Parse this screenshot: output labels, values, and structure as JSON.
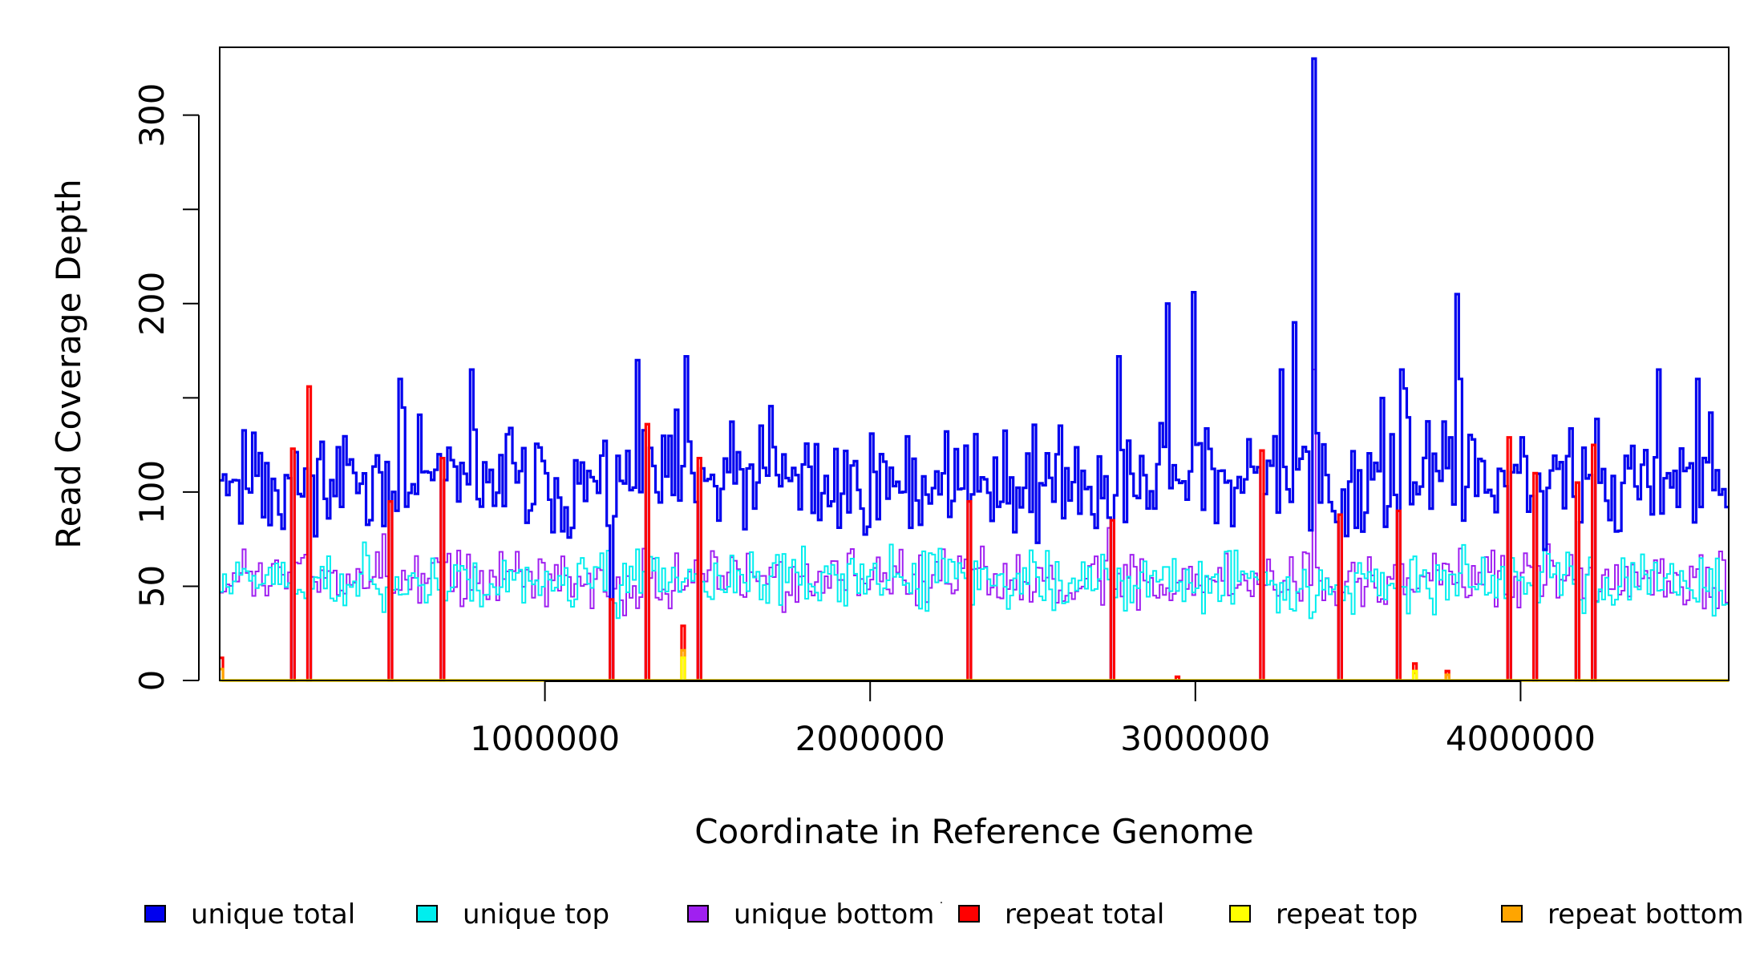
{
  "chart_data": {
    "type": "line",
    "title": "",
    "xlabel": "Coordinate in Reference Genome",
    "ylabel": "Read Coverage Depth",
    "xlim": [
      0,
      4640000
    ],
    "ylim": [
      0,
      336
    ],
    "x_ticks": [
      1000000,
      2000000,
      3000000,
      4000000
    ],
    "x_tick_labels": [
      "1000000",
      "2000000",
      "3000000",
      "4000000"
    ],
    "y_ticks": [
      0,
      50,
      100,
      150,
      200,
      250,
      300
    ],
    "y_tick_labels": [
      "0",
      "50",
      "100",
      "",
      "200",
      "",
      "300"
    ],
    "grid": false,
    "legend_position": "bottom",
    "bin_size": 10000,
    "series": [
      {
        "name": "unique total",
        "color": "#0000ee",
        "baseline": 105,
        "noise": 17,
        "min": 60,
        "max": 165,
        "seed": 11,
        "spikes": [
          [
            3360000,
            330
          ],
          [
            2990000,
            206
          ],
          [
            2910000,
            200
          ],
          [
            3800000,
            205
          ],
          [
            3300000,
            190
          ],
          [
            1280000,
            170
          ],
          [
            1430000,
            172
          ],
          [
            3630000,
            165
          ],
          [
            3260000,
            165
          ],
          [
            3810000,
            160
          ],
          [
            4420000,
            165
          ],
          [
            2760000,
            172
          ],
          [
            4540000,
            160
          ],
          [
            550000,
            160
          ],
          [
            770000,
            165
          ]
        ],
        "drops": [
          220000,
          270000,
          520000,
          680000,
          1200000,
          1310000,
          1470000,
          2300000,
          2740000,
          3200000,
          3440000,
          3620000,
          3960000,
          4040000,
          4170000,
          4220000
        ]
      },
      {
        "name": "unique top",
        "color": "#00eeee",
        "baseline": 52,
        "noise": 9,
        "min": 22,
        "max": 95,
        "seed": 23,
        "spikes": [],
        "drops": [
          220000,
          270000,
          520000,
          680000,
          1200000,
          1310000,
          1470000,
          2300000,
          2740000,
          3200000,
          3440000,
          3620000,
          3960000,
          4040000,
          4170000,
          4220000
        ]
      },
      {
        "name": "unique bottom",
        "color": "#a020f0",
        "baseline": 53,
        "noise": 9,
        "min": 22,
        "max": 95,
        "seed": 37,
        "spikes": [
          [
            3360000,
            165
          ]
        ],
        "drops": [
          220000,
          270000,
          520000,
          680000,
          1200000,
          1310000,
          1470000,
          2300000,
          2740000,
          3200000,
          3440000,
          3620000,
          3960000,
          4040000,
          4170000,
          4220000
        ]
      },
      {
        "name": "repeat total",
        "color": "#ff0000",
        "baseline": 0,
        "noise": 0,
        "min": 0,
        "max": 200,
        "seed": 41,
        "spikes": [
          [
            5000,
            12
          ],
          [
            220000,
            123
          ],
          [
            270000,
            156
          ],
          [
            520000,
            95
          ],
          [
            680000,
            118
          ],
          [
            1200000,
            43
          ],
          [
            1310000,
            136
          ],
          [
            1420000,
            29
          ],
          [
            1470000,
            118
          ],
          [
            2300000,
            95
          ],
          [
            2740000,
            85
          ],
          [
            2940000,
            2
          ],
          [
            3200000,
            122
          ],
          [
            3440000,
            88
          ],
          [
            3620000,
            90
          ],
          [
            3670000,
            9
          ],
          [
            3770000,
            5
          ],
          [
            3960000,
            129
          ],
          [
            4040000,
            110
          ],
          [
            4170000,
            105
          ],
          [
            4220000,
            125
          ]
        ],
        "drops": []
      },
      {
        "name": "repeat top",
        "color": "#ffff00",
        "baseline": 0,
        "noise": 0,
        "min": 0,
        "max": 200,
        "seed": 53,
        "spikes": [
          [
            1420000,
            12
          ],
          [
            3670000,
            5
          ]
        ],
        "drops": []
      },
      {
        "name": "repeat bottom",
        "color": "#ffa500",
        "baseline": 0,
        "noise": 0,
        "min": 0,
        "max": 200,
        "seed": 67,
        "spikes": [
          [
            5000,
            6
          ],
          [
            1420000,
            16
          ],
          [
            3670000,
            4
          ],
          [
            3770000,
            3
          ]
        ],
        "drops": []
      }
    ],
    "stray_mark": "·"
  }
}
